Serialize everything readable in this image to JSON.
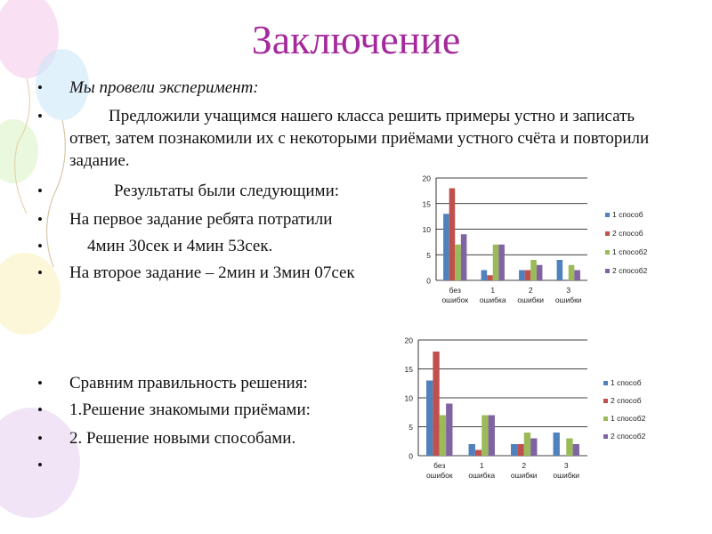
{
  "title": "Заключение",
  "bullets": [
    {
      "text": "Мы провели эксперимент:",
      "italic": true,
      "indent": 0
    },
    {
      "text": "Предложили учащимся нашего класса решить примеры устно и записать ответ, затем познакомили их с некоторыми приёмами устного счёта и повторили задание.",
      "italic": false,
      "indent": 1
    },
    {
      "text": "Результаты были следующими:",
      "italic": false,
      "indent": 2
    },
    {
      "text": "На первое задание ребята потратили",
      "italic": false,
      "indent": 0
    },
    {
      "text": "4мин 30сек и 4мин 53сек.",
      "italic": false,
      "indent": 3
    },
    {
      "text": "На второе задание – 2мин и 3мин 07сек",
      "italic": false,
      "indent": 0
    },
    {
      "text": "Сравним правильность решения:",
      "italic": false,
      "indent": 0
    },
    {
      "text": "1.Решение знакомыми приёмами:",
      "italic": false,
      "indent": 0
    },
    {
      "text": "2. Решение новыми способами.",
      "italic": false,
      "indent": 0
    },
    {
      "text": "",
      "italic": false,
      "indent": 0
    }
  ],
  "colors": {
    "title": "#a42a9c",
    "s1": "#4f81bd",
    "s2": "#c0504d",
    "s3": "#9bbb59",
    "s4": "#8064a2"
  },
  "chart_data": [
    {
      "type": "bar",
      "categories": [
        [
          "без",
          "ошибок"
        ],
        [
          "1",
          "ошибка"
        ],
        [
          "2",
          "ошибки"
        ],
        [
          "3",
          "ошибки"
        ]
      ],
      "yticks": [
        0,
        5,
        10,
        15,
        20
      ],
      "ylim": [
        0,
        20
      ],
      "series": [
        {
          "name": "1 способ",
          "values": [
            13,
            2,
            2,
            4
          ]
        },
        {
          "name": "2 способ",
          "values": [
            18,
            1,
            2,
            0
          ]
        },
        {
          "name": "1 способ2",
          "values": [
            7,
            7,
            4,
            3
          ]
        },
        {
          "name": "2 способ2",
          "values": [
            9,
            7,
            3,
            2
          ]
        }
      ],
      "legend": "right"
    },
    {
      "type": "bar",
      "categories": [
        [
          "без",
          "ошибок"
        ],
        [
          "1",
          "ошибка"
        ],
        [
          "2",
          "ошибки"
        ],
        [
          "3",
          "ошибки"
        ]
      ],
      "yticks": [
        0,
        5,
        10,
        15,
        20
      ],
      "ylim": [
        0,
        20
      ],
      "series": [
        {
          "name": "1 способ",
          "values": [
            13,
            2,
            2,
            4
          ]
        },
        {
          "name": "2 способ",
          "values": [
            18,
            1,
            2,
            0
          ]
        },
        {
          "name": "1 способ2",
          "values": [
            7,
            7,
            4,
            3
          ]
        },
        {
          "name": "2 способ2",
          "values": [
            9,
            7,
            3,
            2
          ]
        }
      ],
      "legend": "right"
    }
  ]
}
